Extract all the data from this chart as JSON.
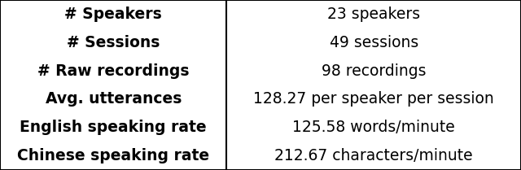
{
  "rows": [
    [
      "# Speakers",
      "23 speakers"
    ],
    [
      "# Sessions",
      "49 sessions"
    ],
    [
      "# Raw recordings",
      "98 recordings"
    ],
    [
      "Avg. utterances",
      "128.27 per speaker per session"
    ],
    [
      "English speaking rate",
      "125.58 words/minute"
    ],
    [
      "Chinese speaking rate",
      "212.67 characters/minute"
    ]
  ],
  "col_split": 0.435,
  "background_color": "#ffffff",
  "border_color": "#000000",
  "text_color": "#000000",
  "font_size": 13.5,
  "figsize": [
    6.4,
    2.09
  ],
  "dpi": 100,
  "linewidth": 1.5
}
